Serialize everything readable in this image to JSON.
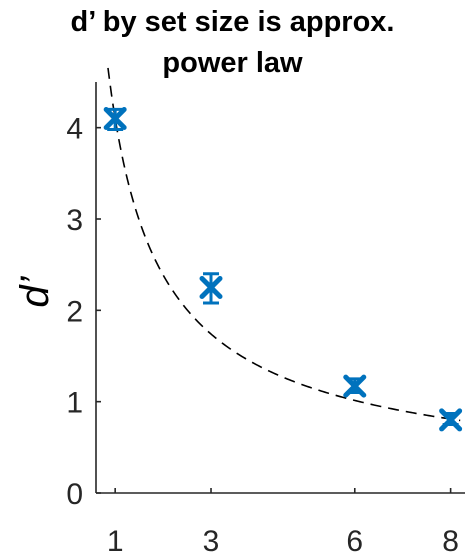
{
  "chart_data": {
    "type": "scatter",
    "title_lines": [
      "d’ by set size is approx.",
      "power law"
    ],
    "xlabel": "",
    "ylabel": "d’",
    "x_ticks": [
      1,
      3,
      6,
      8
    ],
    "y_ticks": [
      0,
      1,
      2,
      3,
      4
    ],
    "xlim": [
      0.6,
      8.3
    ],
    "ylim": [
      0,
      4.5
    ],
    "grid": false,
    "x": [
      1,
      3,
      6,
      8
    ],
    "y": [
      4.1,
      2.25,
      1.17,
      0.8
    ],
    "error_low": [
      3.98,
      2.08,
      1.1,
      0.75
    ],
    "error_high": [
      4.2,
      2.4,
      1.25,
      0.87
    ],
    "fit_line": {
      "style": "dashed",
      "color": "#000000",
      "curve": "power law",
      "a": 4.1,
      "b": -0.78
    },
    "marker_color": "#0072BD",
    "marker_shape": "x"
  }
}
